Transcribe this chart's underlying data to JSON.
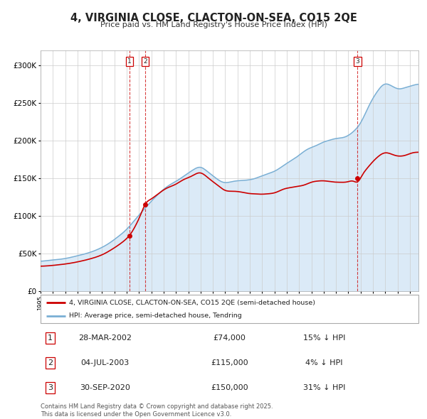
{
  "title": "4, VIRGINIA CLOSE, CLACTON-ON-SEA, CO15 2QE",
  "subtitle": "Price paid vs. HM Land Registry's House Price Index (HPI)",
  "ylim": [
    0,
    320000
  ],
  "yticks": [
    0,
    50000,
    100000,
    150000,
    200000,
    250000,
    300000
  ],
  "ytick_labels": [
    "£0",
    "£50K",
    "£100K",
    "£150K",
    "£200K",
    "£250K",
    "£300K"
  ],
  "red_line_color": "#cc0000",
  "blue_line_color": "#7aafd4",
  "blue_fill_color": "#dbeaf7",
  "background_color": "#ffffff",
  "grid_color": "#cccccc",
  "sale_markers": [
    {
      "label": "1",
      "date_x": 2002.24,
      "price": 74000,
      "hpi_pct": "15% ↓ HPI",
      "date_str": "28-MAR-2002"
    },
    {
      "label": "2",
      "date_x": 2003.5,
      "price": 115000,
      "hpi_pct": "4% ↓ HPI",
      "date_str": "04-JUL-2003"
    },
    {
      "label": "3",
      "date_x": 2020.75,
      "price": 150000,
      "hpi_pct": "31% ↓ HPI",
      "date_str": "30-SEP-2020"
    }
  ],
  "legend_label_red": "4, VIRGINIA CLOSE, CLACTON-ON-SEA, CO15 2QE (semi-detached house)",
  "legend_label_blue": "HPI: Average price, semi-detached house, Tendring",
  "footer_text": "Contains HM Land Registry data © Crown copyright and database right 2025.\nThis data is licensed under the Open Government Licence v3.0.",
  "xmin": 1995.0,
  "xmax": 2025.7
}
